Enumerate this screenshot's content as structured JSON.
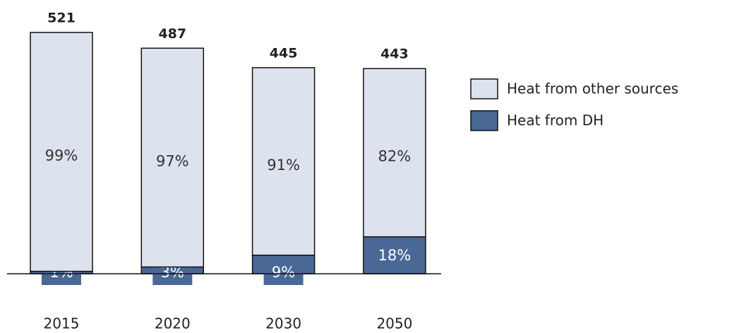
{
  "chart_data": {
    "type": "bar",
    "categories": [
      "2015",
      "2020",
      "2030",
      "2050"
    ],
    "totals": [
      521,
      487,
      445,
      443
    ],
    "series": [
      {
        "name": "Heat from other sources",
        "color": "#dde3ee",
        "values": [
          99,
          97,
          91,
          82
        ],
        "value_labels": [
          "99%",
          "97%",
          "91%",
          "82%"
        ]
      },
      {
        "name": "Heat from DH",
        "color": "#4a6896",
        "values": [
          1,
          3,
          9,
          18
        ],
        "value_labels": [
          "1%",
          "3%",
          "9%",
          "18%"
        ]
      }
    ]
  }
}
